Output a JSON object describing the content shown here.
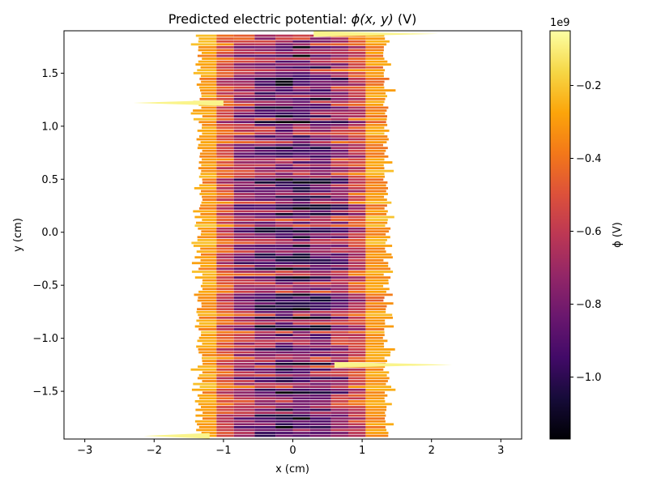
{
  "chart_data": {
    "type": "heatmap",
    "title": "Predicted electric potential: ",
    "title_math": "ϕ(x, y)",
    "title_unit": " (V)",
    "xlabel": "x (cm)",
    "ylabel": "y (cm)",
    "xlim": [
      -3.3,
      3.3
    ],
    "ylim": [
      -1.95,
      1.9
    ],
    "x_ticks": [
      -3,
      -2,
      -1,
      0,
      1,
      2,
      3
    ],
    "x_tick_labels": [
      "−3",
      "−2",
      "−1",
      "0",
      "1",
      "2",
      "3"
    ],
    "y_ticks": [
      -1.5,
      -1.0,
      -0.5,
      0.0,
      0.5,
      1.0,
      1.5
    ],
    "y_tick_labels": [
      "−1.5",
      "−1.0",
      "−0.5",
      "0.0",
      "0.5",
      "1.0",
      "1.5"
    ],
    "colorbar": {
      "label": "ϕ (V)",
      "offset_text": "1e9",
      "colormap": "inferno",
      "range": [
        -1.17,
        -0.05
      ],
      "ticks": [
        -1.0,
        -0.8,
        -0.6,
        -0.4,
        -0.2
      ],
      "tick_labels": [
        "−1.0",
        "−0.8",
        "−0.6",
        "−0.4",
        "−0.2"
      ],
      "units_scale": 1000000000
    },
    "field_summary": {
      "x_extent": [
        -1.3,
        1.3
      ],
      "y_extent": [
        -1.93,
        1.87
      ],
      "row_count": 140,
      "edge_value": -0.1,
      "center_value_min": -1.15,
      "center_value_max": -0.3,
      "streaks": [
        {
          "y": 1.22,
          "x_start": -2.3,
          "x_end": -1.0,
          "value": -0.08
        },
        {
          "y": -1.25,
          "x_start": 0.6,
          "x_end": 2.3,
          "value": -0.08
        },
        {
          "y": 1.87,
          "x_start": 0.3,
          "x_end": 2.1,
          "value": -0.08
        },
        {
          "y": -1.92,
          "x_start": -2.15,
          "x_end": -1.2,
          "value": -0.08
        }
      ]
    }
  }
}
